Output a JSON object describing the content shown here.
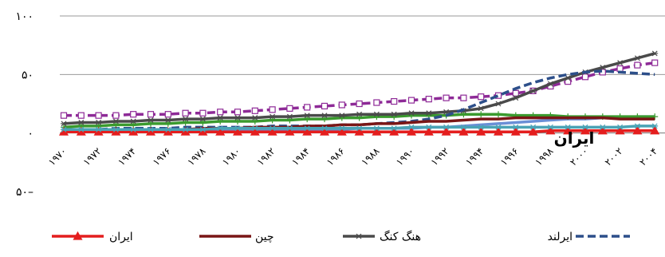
{
  "chart_data": {
    "type": "line",
    "annotation": "ایران",
    "categories": [
      "١٩٧٠",
      null,
      "١٩٧٢",
      null,
      "١٩٧۴",
      null,
      "١٩٧۶",
      null,
      "١٩٧٨",
      null,
      "١٩٨٠",
      null,
      "١٩٨٢",
      null,
      "١٩٨۴",
      null,
      "١٩٨۶",
      null,
      "١٩٨٨",
      null,
      "١٩٩٠",
      null,
      "١٩٩٢",
      null,
      "١٩٩۴",
      null,
      "١٩٩۶",
      null,
      "١٩٩٨",
      null,
      "٢٠٠٠",
      null,
      "٢٠٠٢",
      null,
      "٢٠٠۴"
    ],
    "ylim": [
      -50,
      100
    ],
    "yticks": [
      {
        "value": 100,
        "label": "١٠٠"
      },
      {
        "value": 50,
        "label": "۵٠"
      },
      {
        "value": 0,
        "label": "٠"
      },
      {
        "value": -50,
        "label": "۵٠–"
      }
    ],
    "grid": true,
    "series": [
      {
        "color": "#6a8fd6",
        "marker": "none",
        "dash": "solid",
        "values": [
          1,
          1,
          1,
          1,
          2,
          2,
          2,
          2,
          2,
          2,
          2,
          3,
          3,
          3,
          3,
          3,
          3,
          4,
          4,
          4,
          4,
          5,
          5,
          6,
          7,
          8,
          9,
          10,
          11,
          12,
          12,
          13,
          13,
          14,
          14
        ]
      },
      {
        "color": "#8e2a97",
        "marker": "square",
        "dash": "dashed",
        "values": [
          15,
          15,
          15,
          15,
          16,
          16,
          16,
          17,
          17,
          18,
          18,
          19,
          20,
          21,
          22,
          23,
          24,
          25,
          26,
          27,
          28,
          29,
          30,
          30,
          31,
          32,
          34,
          36,
          40,
          44,
          48,
          52,
          55,
          58,
          60
        ]
      },
      {
        "color": "#3a9a2e",
        "marker": "plus",
        "dash": "solid",
        "values": [
          5,
          6,
          6,
          7,
          7,
          8,
          8,
          9,
          9,
          10,
          10,
          10,
          11,
          11,
          12,
          12,
          13,
          13,
          14,
          14,
          15,
          15,
          15,
          16,
          16,
          16,
          15,
          15,
          15,
          14,
          14,
          14,
          14,
          14,
          14
        ]
      },
      {
        "name": "هنگ کنگ",
        "color": "#4a4a4a",
        "marker": "asterisk",
        "dash": "solid",
        "values": [
          8,
          9,
          9,
          10,
          10,
          11,
          11,
          12,
          12,
          13,
          13,
          13,
          14,
          14,
          15,
          15,
          15,
          16,
          16,
          16,
          17,
          17,
          18,
          19,
          21,
          25,
          30,
          36,
          42,
          47,
          52,
          56,
          60,
          64,
          68
        ]
      },
      {
        "name": "ایرلند",
        "color": "#2d4f8a",
        "marker": "none",
        "dash": "dashed",
        "values": [
          3,
          3,
          3,
          4,
          4,
          4,
          4,
          5,
          5,
          5,
          5,
          5,
          6,
          6,
          6,
          6,
          7,
          7,
          8,
          9,
          10,
          12,
          15,
          20,
          26,
          32,
          38,
          43,
          47,
          50,
          52,
          53,
          52,
          51,
          50
        ]
      },
      {
        "name": "چین",
        "color": "#7a1616",
        "marker": "none",
        "dash": "solid",
        "values": [
          2,
          2,
          2,
          2,
          3,
          3,
          3,
          3,
          4,
          4,
          4,
          5,
          5,
          5,
          6,
          6,
          7,
          7,
          8,
          8,
          9,
          10,
          10,
          11,
          12,
          12,
          13,
          13,
          13,
          13,
          13,
          13,
          12,
          12,
          12
        ]
      },
      {
        "name": "ایران",
        "color": "#e41e1e",
        "marker": "triangle",
        "dash": "solid",
        "values": [
          1,
          1,
          1,
          1,
          1,
          1,
          1,
          1,
          1,
          1,
          1,
          1,
          1,
          1,
          1,
          1,
          1,
          1,
          1,
          1,
          1,
          1,
          1,
          1,
          1,
          1,
          1,
          1,
          2,
          2,
          2,
          2,
          2,
          2,
          2
        ]
      },
      {
        "color": "#4aa3b5",
        "marker": "asterisk",
        "dash": "solid",
        "values": [
          3,
          3,
          3,
          3,
          3,
          3,
          3,
          3,
          3,
          4,
          4,
          4,
          4,
          4,
          4,
          4,
          4,
          4,
          4,
          4,
          5,
          5,
          5,
          5,
          5,
          5,
          5,
          5,
          5,
          5,
          5,
          5,
          5,
          6,
          6
        ]
      }
    ]
  }
}
